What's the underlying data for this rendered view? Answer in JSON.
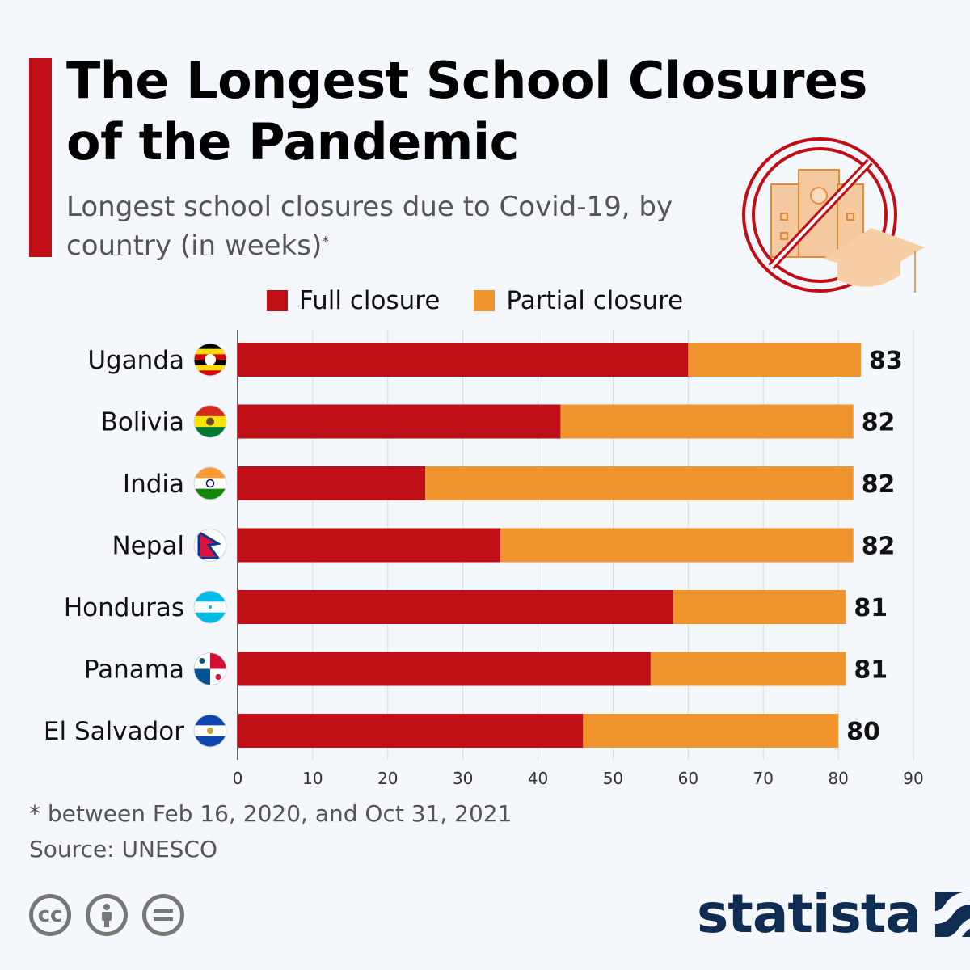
{
  "title": "The Longest School Closures of the Pandemic",
  "subtitle": "Longest school closures due to Covid-19, by country (in weeks)",
  "subtitle_marker": "*",
  "legend": [
    {
      "label": "Full closure",
      "color": "#c00e16"
    },
    {
      "label": "Partial closure",
      "color": "#f0952e"
    }
  ],
  "footnote": "* between Feb 16, 2020, and Oct 31, 2021",
  "source": "Source: UNESCO",
  "license_icons": [
    "cc-icon",
    "attribution-icon",
    "no-derivatives-icon"
  ],
  "brand": "statista",
  "chart_data": {
    "type": "bar",
    "orientation": "horizontal",
    "stacked": true,
    "categories": [
      "Uganda",
      "Bolivia",
      "India",
      "Nepal",
      "Honduras",
      "Panama",
      "El Salvador"
    ],
    "series": [
      {
        "name": "Full closure",
        "values": [
          60,
          43,
          25,
          35,
          58,
          55,
          46
        ],
        "color": "#c00e16"
      },
      {
        "name": "Partial closure",
        "values": [
          23,
          39,
          57,
          47,
          23,
          26,
          34
        ],
        "color": "#f0952e"
      }
    ],
    "totals": [
      83,
      82,
      82,
      82,
      81,
      81,
      80
    ],
    "xlim": [
      0,
      90
    ],
    "xticks": [
      0,
      10,
      20,
      30,
      40,
      50,
      60,
      70,
      80,
      90
    ],
    "grid": true,
    "legend_position": "top",
    "flag_icons": [
      "uganda-flag-icon",
      "bolivia-flag-icon",
      "india-flag-icon",
      "nepal-flag-icon",
      "honduras-flag-icon",
      "panama-flag-icon",
      "el-salvador-flag-icon"
    ]
  }
}
